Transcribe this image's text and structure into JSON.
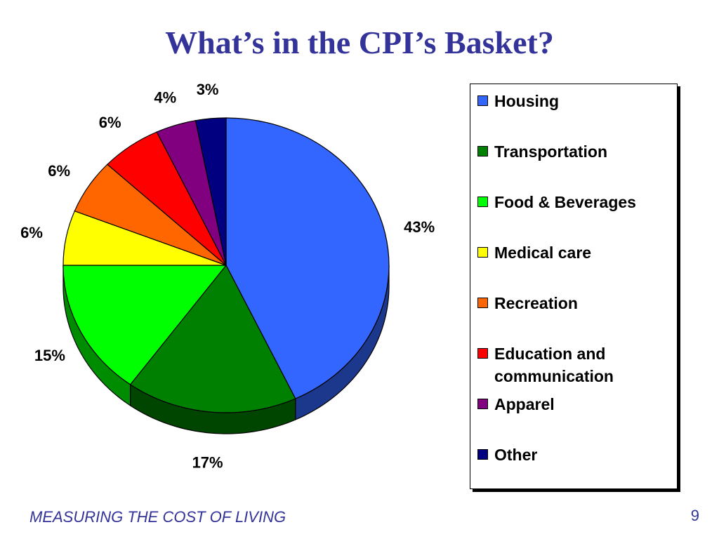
{
  "slide": {
    "title": "What’s in the CPI’s Basket?",
    "footer": "MEASURING THE COST OF LIVING",
    "page_number": "9"
  },
  "chart_data": {
    "type": "pie",
    "style": "3d",
    "legend": "right",
    "start_angle_deg": 0,
    "direction": "clockwise",
    "series": [
      {
        "name": "Housing",
        "value": 43,
        "label": "43%",
        "color": "#3366FF"
      },
      {
        "name": "Transportation",
        "value": 17,
        "label": "17%",
        "color": "#008000"
      },
      {
        "name": "Food & Beverages",
        "value": 15,
        "label": "15%",
        "color": "#00FF00"
      },
      {
        "name": "Medical care",
        "value": 6,
        "label": "6%",
        "color": "#FFFF00"
      },
      {
        "name": "Recreation",
        "value": 6,
        "label": "6%",
        "color": "#FF6600"
      },
      {
        "name": "Education and communication",
        "value": 6,
        "label": "6%",
        "color": "#FF0000"
      },
      {
        "name": "Apparel",
        "value": 4,
        "label": "4%",
        "color": "#800080"
      },
      {
        "name": "Other",
        "value": 3,
        "label": "3%",
        "color": "#000080"
      }
    ]
  }
}
